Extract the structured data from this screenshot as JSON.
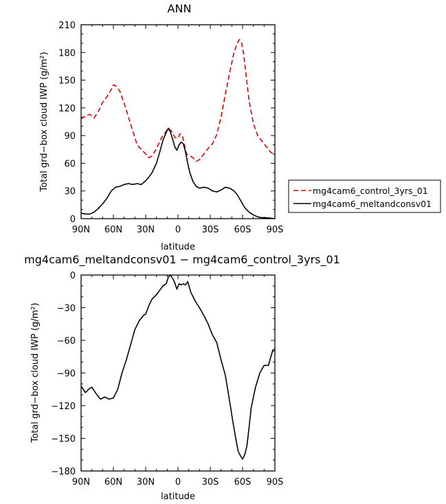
{
  "colors": {
    "control": "#dd0000",
    "melt": "#000000"
  },
  "chart_data": [
    {
      "type": "line",
      "title": "ANN",
      "xlabel": "latitude",
      "ylabel": "Total grd−box cloud IWP (g/m²)",
      "xlim": [
        -90,
        90
      ],
      "ylim": [
        0,
        210
      ],
      "xticks": [
        -90,
        -60,
        -30,
        0,
        30,
        60,
        90
      ],
      "xticklabels": [
        "90N",
        "60N",
        "30N",
        "0",
        "30S",
        "60S",
        "90S"
      ],
      "yticks": [
        0,
        30,
        60,
        90,
        120,
        150,
        180,
        210
      ],
      "yticklabels": [
        "0",
        "30",
        "60",
        "90",
        "120",
        "150",
        "180",
        "210"
      ],
      "legend_position": "right",
      "series": [
        {
          "name": "mg4cam6_control_3yrs_01",
          "style": "dashed",
          "x": [
            -90,
            -85,
            -82,
            -78,
            -74,
            -70,
            -66,
            -62,
            -60,
            -57,
            -54,
            -50,
            -46,
            -42,
            -38,
            -34,
            -30,
            -27,
            -24,
            -20,
            -16,
            -12,
            -9,
            -7,
            -5,
            -3,
            0,
            2,
            4,
            6,
            8,
            11,
            14,
            17,
            20,
            24,
            28,
            32,
            36,
            40,
            44,
            48,
            52,
            55,
            57,
            59,
            61,
            63,
            66,
            70,
            74,
            78,
            82,
            86,
            90
          ],
          "y": [
            108,
            112,
            113,
            109,
            116,
            126,
            132,
            140,
            145,
            143,
            138,
            125,
            110,
            95,
            80,
            75,
            70,
            66,
            68,
            76,
            86,
            93,
            98,
            96,
            93,
            88,
            87,
            92,
            90,
            80,
            70,
            68,
            66,
            62,
            64,
            70,
            76,
            81,
            91,
            110,
            135,
            158,
            180,
            190,
            194,
            191,
            178,
            158,
            128,
            103,
            90,
            84,
            78,
            72,
            69
          ]
        },
        {
          "name": "mg4cam6_meltandconsv01",
          "style": "solid",
          "x": [
            -90,
            -86,
            -82,
            -78,
            -74,
            -70,
            -66,
            -62,
            -58,
            -54,
            -50,
            -46,
            -42,
            -38,
            -34,
            -30,
            -27,
            -24,
            -20,
            -17,
            -14,
            -11,
            -9,
            -7,
            -5,
            -3,
            -1,
            1,
            3,
            5,
            7,
            9,
            11,
            14,
            17,
            20,
            24,
            28,
            32,
            36,
            40,
            44,
            48,
            52,
            55,
            58,
            62,
            66,
            70,
            74,
            78,
            82,
            86,
            90
          ],
          "y": [
            6,
            5,
            5,
            7,
            11,
            16,
            22,
            30,
            34,
            35,
            37,
            38,
            37,
            38,
            37,
            41,
            45,
            50,
            60,
            72,
            85,
            93,
            98,
            94,
            86,
            78,
            74,
            80,
            83,
            81,
            72,
            60,
            50,
            40,
            35,
            33,
            34,
            33,
            30,
            29,
            31,
            34,
            33,
            30,
            26,
            20,
            12,
            7,
            4,
            2,
            1,
            1,
            0.5,
            0
          ]
        }
      ]
    },
    {
      "type": "line",
      "title": "mg4cam6_meltandconsv01 − mg4cam6_control_3yrs_01",
      "xlabel": "latitude",
      "ylabel": "Total grd−box cloud IWP (g/m²)",
      "xlim": [
        -90,
        90
      ],
      "ylim": [
        -180,
        0
      ],
      "xticks": [
        -90,
        -60,
        -30,
        0,
        30,
        60,
        90
      ],
      "xticklabels": [
        "90N",
        "60N",
        "30N",
        "0",
        "30S",
        "60S",
        "90S"
      ],
      "yticks": [
        -180,
        -150,
        -120,
        -90,
        -60,
        -30,
        0
      ],
      "yticklabels": [
        "−180",
        "−150",
        "−120",
        "−90",
        "−60",
        "−30",
        "0"
      ],
      "series": [
        {
          "name": "",
          "style": "solid",
          "x": [
            -90,
            -86,
            -82,
            -80,
            -78,
            -76,
            -72,
            -68,
            -64,
            -60,
            -56,
            -52,
            -48,
            -44,
            -40,
            -36,
            -32,
            -30,
            -27,
            -24,
            -20,
            -17,
            -14,
            -11,
            -9,
            -7,
            -5,
            -3,
            -1,
            1,
            3,
            5,
            7,
            9,
            12,
            16,
            20,
            24,
            28,
            32,
            36,
            40,
            44,
            48,
            51,
            54,
            56,
            58,
            60,
            62,
            64,
            66,
            68,
            72,
            76,
            80,
            84,
            88,
            90
          ],
          "y": [
            -102,
            -108,
            -104,
            -103,
            -106,
            -109,
            -114,
            -112,
            -114,
            -113,
            -105,
            -90,
            -78,
            -64,
            -50,
            -42,
            -37,
            -36,
            -28,
            -22,
            -18,
            -14,
            -10,
            -8,
            -2,
            0,
            -3,
            -7,
            -13,
            -8,
            -9,
            -8,
            -9,
            -6,
            -16,
            -24,
            -30,
            -37,
            -45,
            -55,
            -62,
            -78,
            -92,
            -116,
            -135,
            -152,
            -162,
            -166,
            -169,
            -165,
            -157,
            -140,
            -122,
            -103,
            -90,
            -83,
            -83,
            -69,
            -68
          ]
        }
      ]
    }
  ]
}
